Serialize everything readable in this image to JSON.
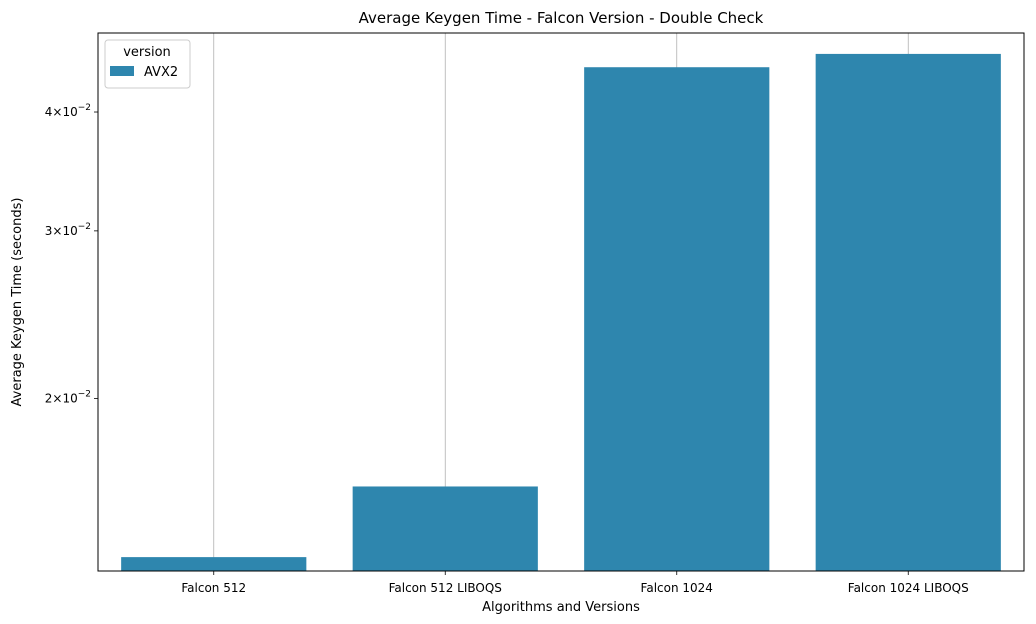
{
  "chart_data": {
    "type": "bar",
    "title": "Average Keygen Time - Falcon Version - Double Check",
    "xlabel": "Algorithms and Versions",
    "ylabel": "Average Keygen Time (seconds)",
    "yscale": "log",
    "ylim": [
      0.01317,
      0.04843
    ],
    "categories": [
      "Falcon 512",
      "Falcon 512 LIBOQS",
      "Falcon 1024",
      "Falcon 1024 LIBOQS"
    ],
    "series": [
      {
        "name": "AVX2",
        "values": [
          0.01362,
          0.01616,
          0.04458,
          0.04604
        ]
      }
    ],
    "yticks": [
      {
        "value": 0.02,
        "mant": "2",
        "exp": "−2"
      },
      {
        "value": 0.03,
        "mant": "3",
        "exp": "−2"
      },
      {
        "value": 0.04,
        "mant": "4",
        "exp": "−2"
      }
    ],
    "legend": {
      "title": "version",
      "placement": "top-left"
    },
    "grid": "x",
    "bar_color": "#2e86ae"
  }
}
